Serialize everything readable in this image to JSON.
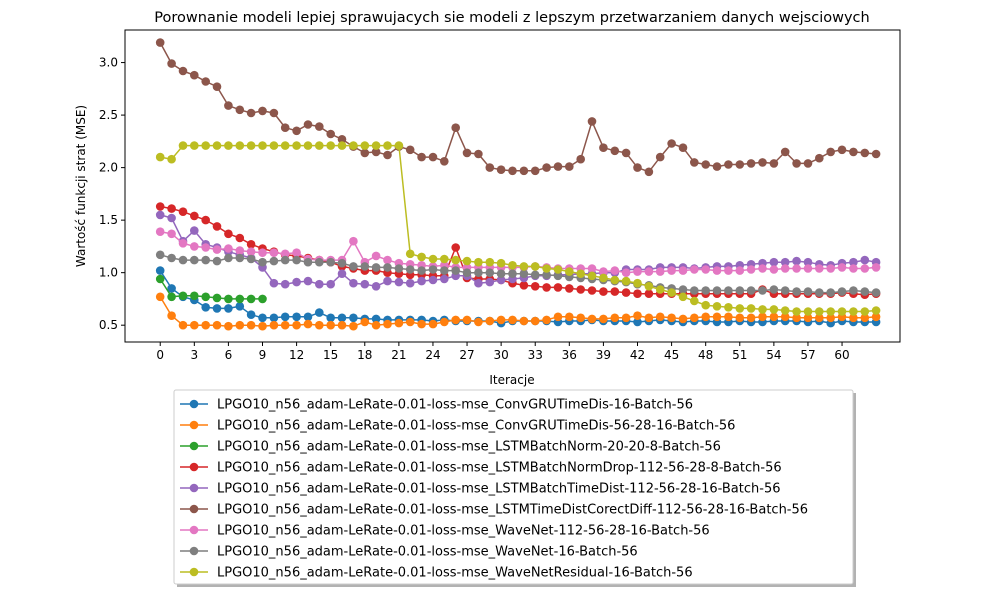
{
  "chart_data": {
    "type": "line",
    "title": "Porownanie modeli lepiej sprawujacych sie modeli z lepszym przetwarzaniem danych wejsciowych",
    "xlabel": "Iteracje",
    "ylabel": "Wartość funkcji strat (MSE)",
    "xlim": [
      -3.1,
      65.1
    ],
    "ylim": [
      0.34,
      3.31
    ],
    "xticks": [
      0,
      3,
      6,
      9,
      12,
      15,
      18,
      21,
      24,
      27,
      30,
      33,
      36,
      39,
      42,
      45,
      48,
      51,
      54,
      57,
      60
    ],
    "yticks": [
      0.5,
      1.0,
      1.5,
      2.0,
      2.5,
      3.0
    ],
    "ytick_labels": [
      "0.5",
      "1.0",
      "1.5",
      "2.0",
      "2.5",
      "3.0"
    ],
    "grid": false,
    "legend_position": "below-center",
    "series": [
      {
        "name": "LPGO10_n56_adam-LeRate-0.01-loss-mse_ConvGRUTimeDis-16-Batch-56",
        "color": "#1f77b4",
        "values": [
          1.02,
          0.85,
          0.77,
          0.74,
          0.67,
          0.66,
          0.66,
          0.68,
          0.6,
          0.57,
          0.57,
          0.58,
          0.58,
          0.58,
          0.62,
          0.57,
          0.57,
          0.57,
          0.56,
          0.56,
          0.55,
          0.55,
          0.55,
          0.55,
          0.54,
          0.55,
          0.54,
          0.54,
          0.54,
          0.54,
          0.52,
          0.54,
          0.54,
          0.54,
          0.54,
          0.53,
          0.54,
          0.54,
          0.55,
          0.54,
          0.54,
          0.54,
          0.53,
          0.54,
          0.55,
          0.54,
          0.53,
          0.54,
          0.54,
          0.53,
          0.53,
          0.54,
          0.53,
          0.53,
          0.54,
          0.54,
          0.54,
          0.53,
          0.54,
          0.52,
          0.54,
          0.53,
          0.53,
          0.53
        ]
      },
      {
        "name": "LPGO10_n56_adam-LeRate-0.01-loss-mse_ConvGRUTimeDis-56-28-16-Batch-56",
        "color": "#ff7f0e",
        "values": [
          0.77,
          0.59,
          0.5,
          0.5,
          0.5,
          0.5,
          0.49,
          0.5,
          0.5,
          0.49,
          0.5,
          0.5,
          0.5,
          0.51,
          0.5,
          0.5,
          0.5,
          0.49,
          0.53,
          0.5,
          0.51,
          0.52,
          0.53,
          0.51,
          0.51,
          0.53,
          0.55,
          0.55,
          0.53,
          0.54,
          0.55,
          0.55,
          0.54,
          0.54,
          0.55,
          0.58,
          0.58,
          0.57,
          0.56,
          0.56,
          0.57,
          0.57,
          0.59,
          0.57,
          0.58,
          0.57,
          0.56,
          0.57,
          0.58,
          0.58,
          0.58,
          0.57,
          0.57,
          0.58,
          0.58,
          0.58,
          0.57,
          0.57,
          0.57,
          0.57,
          0.58,
          0.57,
          0.57,
          0.58
        ]
      },
      {
        "name": "LPGO10_n56_adam-LeRate-0.01-loss-mse_LSTMBatchNorm-20-20-8-Batch-56",
        "color": "#2ca02c",
        "values": [
          0.94,
          0.77,
          0.78,
          0.78,
          0.77,
          0.76,
          0.75,
          0.75,
          0.75,
          0.75
        ]
      },
      {
        "name": "LPGO10_n56_adam-LeRate-0.01-loss-mse_LSTMBatchNormDrop-112-56-28-8-Batch-56",
        "color": "#d62728",
        "values": [
          1.63,
          1.61,
          1.58,
          1.54,
          1.5,
          1.44,
          1.37,
          1.33,
          1.27,
          1.23,
          1.2,
          1.17,
          1.16,
          1.14,
          1.12,
          1.1,
          1.06,
          1.04,
          1.02,
          1.02,
          1.0,
          0.99,
          0.98,
          0.98,
          0.97,
          0.97,
          1.24,
          0.95,
          0.94,
          0.94,
          0.93,
          0.9,
          0.88,
          0.87,
          0.86,
          0.86,
          0.85,
          0.84,
          0.83,
          0.82,
          0.82,
          0.81,
          0.8,
          0.8,
          0.8,
          0.8,
          0.8,
          0.8,
          0.8,
          0.8,
          0.8,
          0.8,
          0.8,
          0.84,
          0.8,
          0.8,
          0.8,
          0.8,
          0.8,
          0.8,
          0.81,
          0.8,
          0.79,
          0.8
        ]
      },
      {
        "name": "LPGO10_n56_adam-LeRate-0.01-loss-mse_LSTMBatchTimeDist-112-56-28-16-Batch-56",
        "color": "#9467bd",
        "values": [
          1.55,
          1.52,
          1.3,
          1.4,
          1.27,
          1.24,
          1.2,
          1.17,
          1.14,
          1.05,
          0.9,
          0.89,
          0.91,
          0.92,
          0.89,
          0.89,
          0.99,
          0.9,
          0.89,
          0.87,
          0.92,
          0.91,
          0.9,
          0.92,
          0.93,
          0.94,
          0.97,
          0.97,
          0.9,
          0.91,
          0.93,
          0.94,
          0.95,
          0.97,
          0.97,
          0.98,
          0.98,
          0.99,
          0.99,
          1.0,
          1.0,
          1.03,
          1.03,
          1.03,
          1.05,
          1.05,
          1.05,
          1.04,
          1.05,
          1.06,
          1.06,
          1.07,
          1.08,
          1.09,
          1.1,
          1.1,
          1.11,
          1.1,
          1.08,
          1.07,
          1.09,
          1.1,
          1.12,
          1.1
        ]
      },
      {
        "name": "LPGO10_n56_adam-LeRate-0.01-loss-mse_LSTMTimeDistCorectDiff-112-56-28-16-Batch-56",
        "color": "#8c564b",
        "values": [
          3.19,
          2.99,
          2.92,
          2.88,
          2.82,
          2.77,
          2.59,
          2.55,
          2.52,
          2.54,
          2.52,
          2.38,
          2.35,
          2.41,
          2.39,
          2.32,
          2.27,
          2.2,
          2.14,
          2.15,
          2.12,
          2.2,
          2.17,
          2.1,
          2.1,
          2.06,
          2.38,
          2.14,
          2.13,
          2.0,
          1.98,
          1.97,
          1.97,
          1.97,
          2.0,
          2.01,
          2.01,
          2.08,
          2.44,
          2.19,
          2.16,
          2.14,
          2.0,
          1.96,
          2.1,
          2.23,
          2.19,
          2.05,
          2.03,
          2.01,
          2.03,
          2.03,
          2.04,
          2.05,
          2.04,
          2.15,
          2.04,
          2.04,
          2.09,
          2.15,
          2.17,
          2.15,
          2.14,
          2.13
        ]
      },
      {
        "name": "LPGO10_n56_adam-LeRate-0.01-loss-mse_WaveNet-112-56-28-16-Batch-56",
        "color": "#e377c2",
        "values": [
          1.39,
          1.37,
          1.28,
          1.25,
          1.24,
          1.22,
          1.23,
          1.21,
          1.2,
          1.19,
          1.19,
          1.18,
          1.19,
          1.13,
          1.12,
          1.12,
          1.12,
          1.3,
          1.1,
          1.16,
          1.12,
          1.09,
          1.08,
          1.07,
          1.06,
          1.07,
          1.05,
          1.05,
          1.05,
          1.05,
          1.05,
          1.05,
          1.05,
          1.06,
          1.05,
          1.04,
          1.04,
          1.04,
          1.04,
          1.01,
          1.02,
          1.0,
          1.01,
          1.01,
          1.01,
          1.02,
          1.02,
          1.03,
          1.03,
          1.02,
          1.02,
          1.02,
          1.03,
          1.04,
          1.03,
          1.04,
          1.04,
          1.04,
          1.04,
          1.04,
          1.05,
          1.04,
          1.04,
          1.05
        ]
      },
      {
        "name": "LPGO10_n56_adam-LeRate-0.01-loss-mse_WaveNet-16-Batch-56",
        "color": "#7f7f7f",
        "values": [
          1.17,
          1.14,
          1.12,
          1.12,
          1.12,
          1.11,
          1.14,
          1.14,
          1.13,
          1.1,
          1.11,
          1.12,
          1.12,
          1.1,
          1.1,
          1.1,
          1.09,
          1.06,
          1.06,
          1.05,
          1.05,
          1.04,
          1.03,
          1.02,
          1.03,
          1.02,
          1.02,
          1.0,
          1.0,
          1.0,
          0.99,
          0.99,
          0.99,
          0.98,
          0.98,
          0.97,
          0.96,
          0.95,
          0.94,
          0.93,
          0.92,
          0.91,
          0.89,
          0.88,
          0.86,
          0.85,
          0.84,
          0.83,
          0.83,
          0.83,
          0.83,
          0.83,
          0.83,
          0.83,
          0.84,
          0.83,
          0.82,
          0.82,
          0.81,
          0.81,
          0.82,
          0.83,
          0.82,
          0.81
        ]
      },
      {
        "name": "LPGO10_n56_adam-LeRate-0.01-loss-mse_WaveNetResidual-16-Batch-56",
        "color": "#bcbd22",
        "values": [
          2.1,
          2.08,
          2.21,
          2.21,
          2.21,
          2.21,
          2.21,
          2.21,
          2.21,
          2.21,
          2.21,
          2.21,
          2.21,
          2.21,
          2.21,
          2.21,
          2.21,
          2.21,
          2.21,
          2.21,
          2.21,
          2.21,
          1.18,
          1.15,
          1.13,
          1.13,
          1.12,
          1.11,
          1.1,
          1.1,
          1.09,
          1.07,
          1.06,
          1.06,
          1.04,
          1.03,
          1.01,
          0.99,
          0.97,
          0.95,
          0.93,
          0.92,
          0.9,
          0.87,
          0.84,
          0.81,
          0.77,
          0.73,
          0.69,
          0.68,
          0.67,
          0.66,
          0.66,
          0.65,
          0.65,
          0.64,
          0.63,
          0.63,
          0.63,
          0.63,
          0.63,
          0.63,
          0.63,
          0.64
        ]
      }
    ]
  }
}
